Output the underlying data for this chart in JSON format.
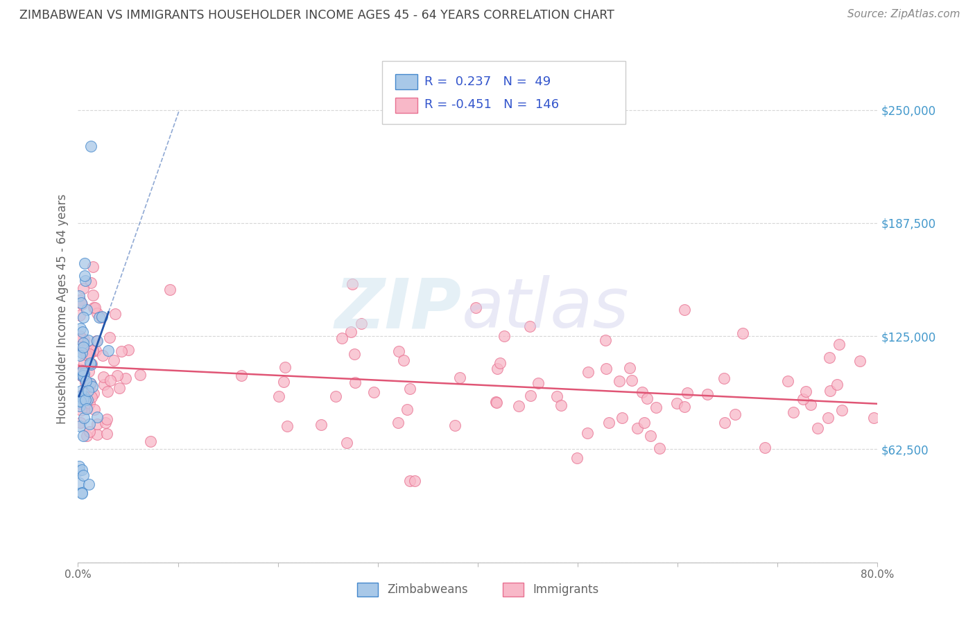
{
  "title": "ZIMBABWEAN VS IMMIGRANTS HOUSEHOLDER INCOME AGES 45 - 64 YEARS CORRELATION CHART",
  "source": "Source: ZipAtlas.com",
  "ylabel": "Householder Income Ages 45 - 64 years",
  "x_min": 0.0,
  "x_max": 0.8,
  "x_ticks": [
    0.0,
    0.1,
    0.2,
    0.3,
    0.4,
    0.5,
    0.6,
    0.7,
    0.8
  ],
  "x_tick_labels": [
    "0.0%",
    "",
    "",
    "",
    "",
    "",
    "",
    "",
    "80.0%"
  ],
  "y_min": 0,
  "y_max": 280000,
  "y_ticks": [
    0,
    62500,
    125000,
    187500,
    250000
  ],
  "y_tick_labels": [
    "",
    "$62,500",
    "$125,000",
    "$187,500",
    "$250,000"
  ],
  "legend_zim_R": "0.237",
  "legend_zim_N": "49",
  "legend_imm_R": "-0.451",
  "legend_imm_N": "146",
  "zim_color": "#a8c8e8",
  "zim_edge_color": "#4488cc",
  "zim_line_color": "#2255aa",
  "imm_color": "#f8b8c8",
  "imm_edge_color": "#e87090",
  "imm_line_color": "#e05575",
  "bg_color": "#ffffff",
  "grid_color": "#cccccc",
  "ytick_color": "#4499cc",
  "title_color": "#444444",
  "source_color": "#888888",
  "legend_text_color": "#3355cc",
  "bottom_legend_color": "#666666"
}
